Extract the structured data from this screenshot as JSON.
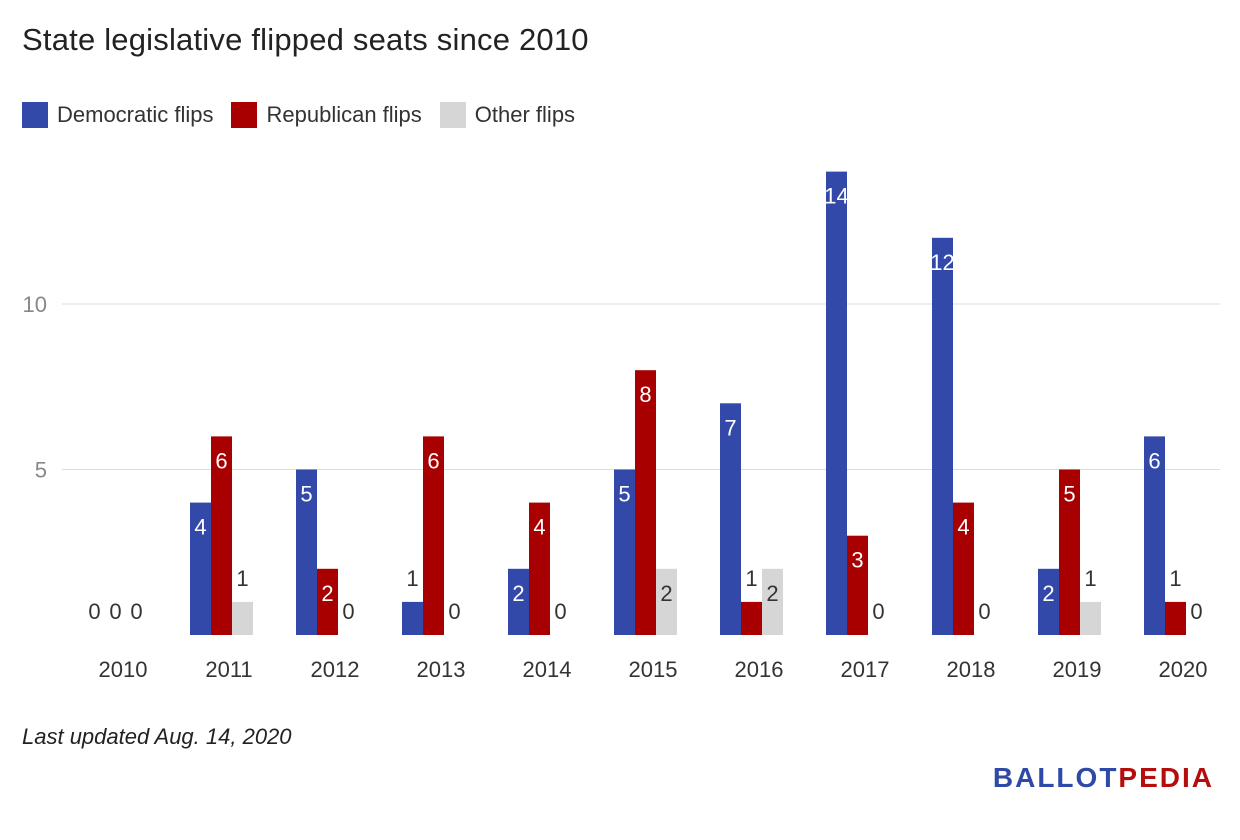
{
  "chart_data": {
    "type": "bar",
    "title": "State legislative flipped seats since 2010",
    "categories": [
      "2010",
      "2011",
      "2012",
      "2013",
      "2014",
      "2015",
      "2016",
      "2017",
      "2018",
      "2019",
      "2020"
    ],
    "series": [
      {
        "name": "Democratic flips",
        "color": "#3349aa",
        "values": [
          0,
          4,
          5,
          1,
          2,
          5,
          7,
          14,
          12,
          2,
          6
        ]
      },
      {
        "name": "Republican flips",
        "color": "#a80000",
        "values": [
          0,
          6,
          2,
          6,
          4,
          8,
          1,
          3,
          4,
          5,
          1
        ]
      },
      {
        "name": "Other flips",
        "color": "#d6d6d6",
        "values": [
          0,
          1,
          0,
          0,
          0,
          2,
          2,
          0,
          0,
          1,
          0
        ]
      }
    ],
    "yticks": [
      5,
      10
    ],
    "ylim": [
      0,
      14
    ],
    "xlabel": "",
    "ylabel": "",
    "legend_position": "top-left",
    "grid": true
  },
  "footnote": "Last updated Aug. 14, 2020",
  "logo": {
    "part1": "BALLOT",
    "part2": "PEDIA"
  }
}
